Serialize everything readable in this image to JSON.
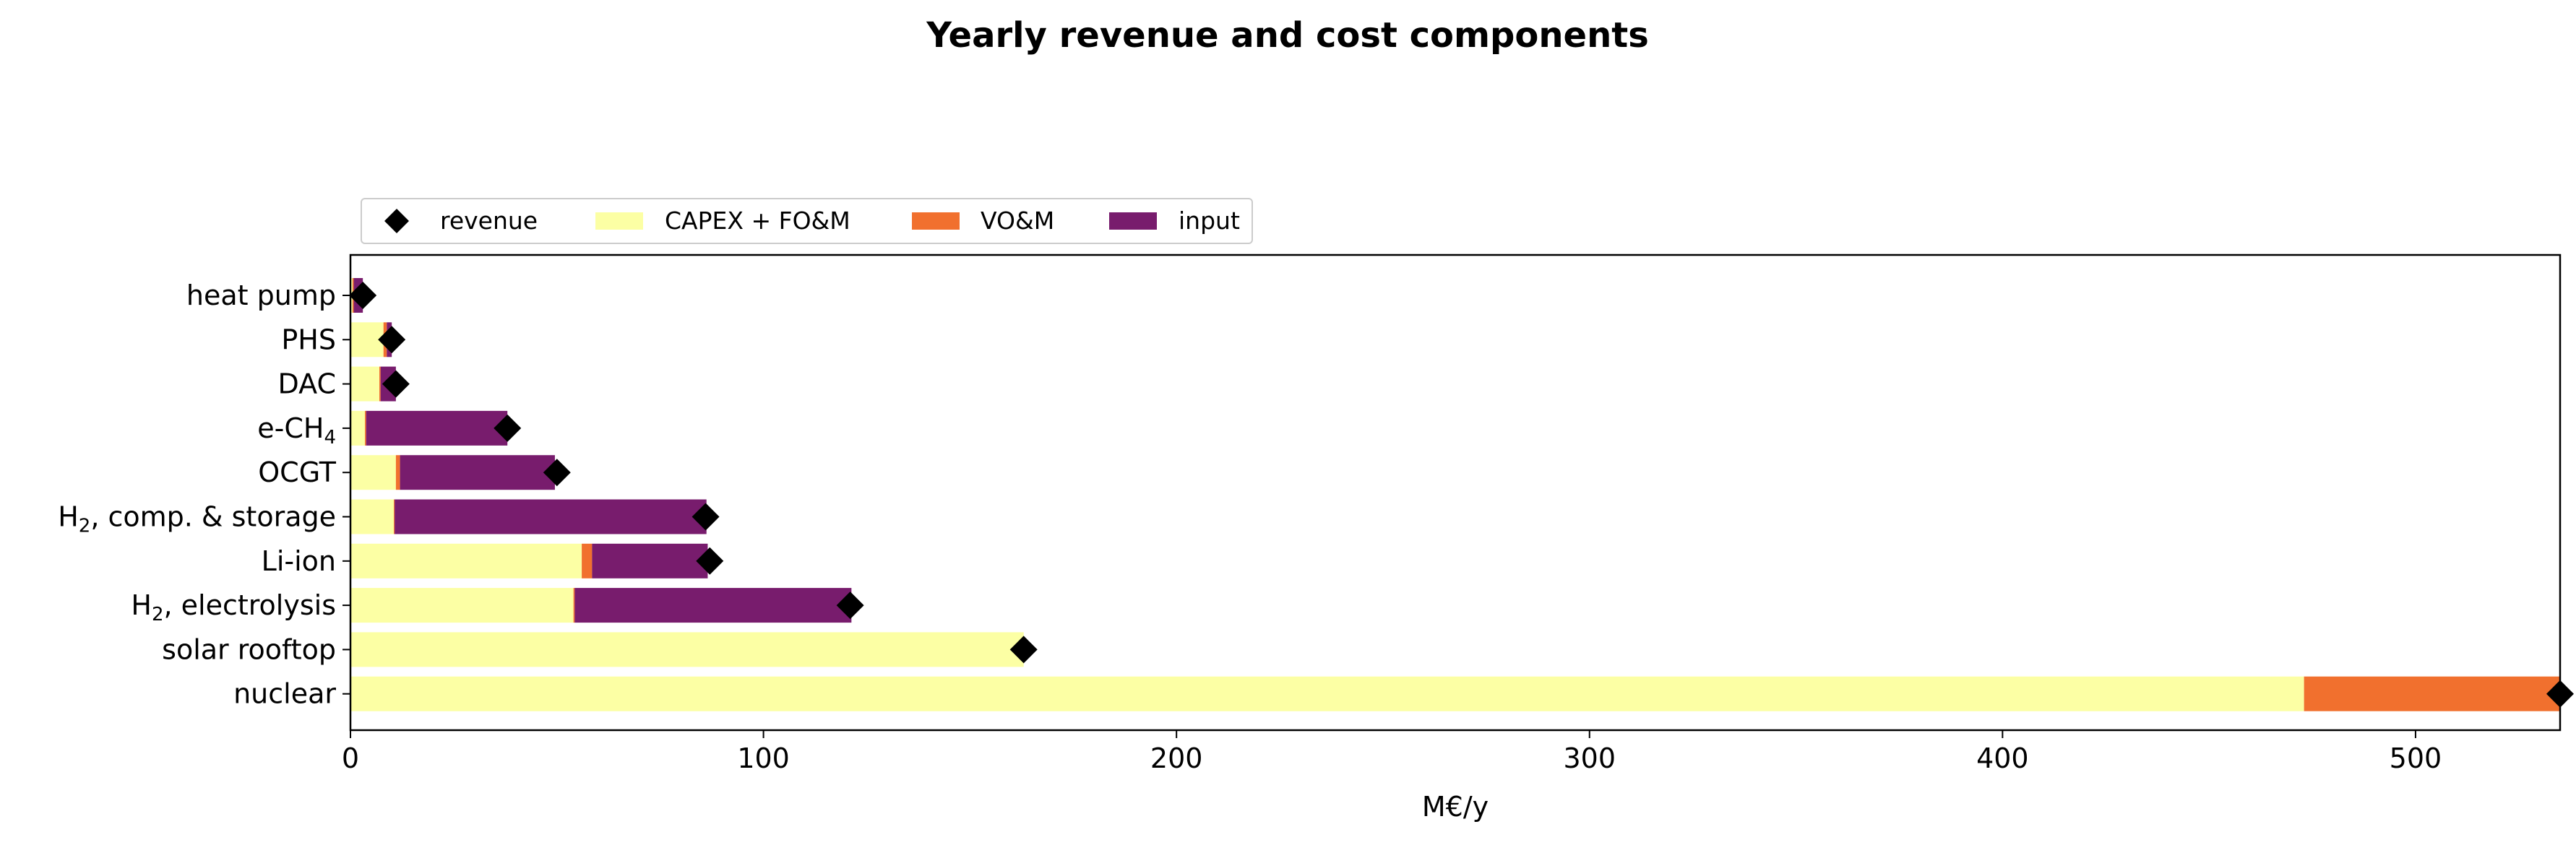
{
  "chart_data": {
    "type": "bar",
    "orientation": "horizontal",
    "stacked": true,
    "title": "Yearly revenue and cost components",
    "xlabel": "M€/y",
    "ylabel": "",
    "xlim": [
      0,
      535
    ],
    "xticks": [
      "0",
      "100",
      "200",
      "300",
      "400",
      "500"
    ],
    "grid": false,
    "legend_position": "top-left, above plot",
    "categories": [
      {
        "main": "heat pump",
        "sub": "",
        "tail": ""
      },
      {
        "main": "PHS",
        "sub": "",
        "tail": ""
      },
      {
        "main": "DAC",
        "sub": "",
        "tail": ""
      },
      {
        "main": "e-CH",
        "sub": "4",
        "tail": ""
      },
      {
        "main": "OCGT",
        "sub": "",
        "tail": ""
      },
      {
        "main": "H",
        "sub": "2",
        "tail": ", comp. & storage"
      },
      {
        "main": "Li-ion",
        "sub": "",
        "tail": ""
      },
      {
        "main": "H",
        "sub": "2",
        "tail": ", electrolysis"
      },
      {
        "main": "solar rooftop",
        "sub": "",
        "tail": ""
      },
      {
        "main": "nuclear",
        "sub": "",
        "tail": ""
      }
    ],
    "series": [
      {
        "name": "CAPEX + FO&M",
        "color": "#fcffa4",
        "values": [
          0.5,
          8,
          7,
          3.5,
          11,
          10.5,
          56,
          54,
          163,
          473
        ]
      },
      {
        "name": "VO&M",
        "color": "#f1702e",
        "values": [
          0.3,
          0.8,
          0.3,
          0.3,
          1,
          0.2,
          2.5,
          0.3,
          0,
          62
        ]
      },
      {
        "name": "input",
        "color": "#781c6d",
        "values": [
          2.2,
          1.2,
          3.7,
          34.2,
          37.5,
          75.5,
          28,
          67,
          0,
          0
        ]
      }
    ],
    "revenue": {
      "name": "revenue",
      "color": "#000000",
      "values": [
        3,
        10,
        11,
        38,
        50,
        86,
        87,
        121,
        163,
        535
      ]
    },
    "legend": [
      "revenue",
      "CAPEX + FO&M",
      "VO&M",
      "input"
    ]
  }
}
